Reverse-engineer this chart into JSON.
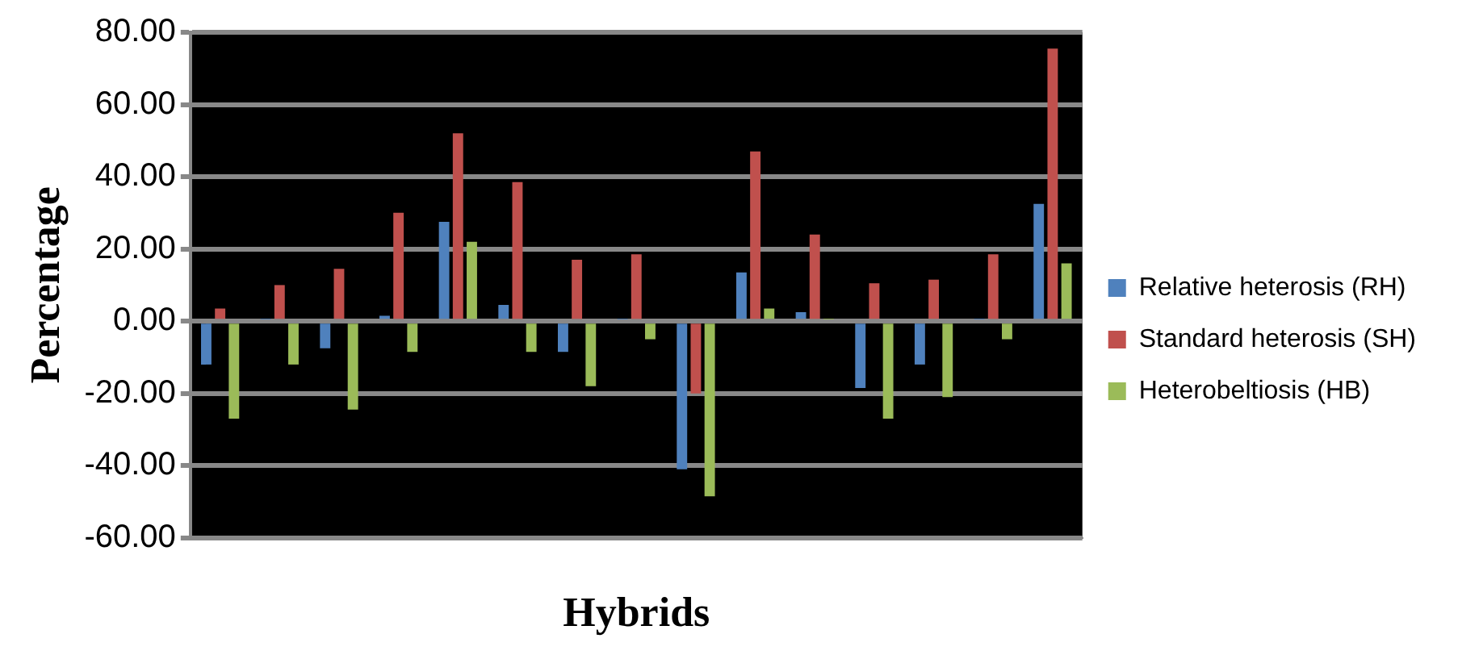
{
  "chart_data": {
    "type": "bar",
    "xlabel": "Hybrids",
    "ylabel": "Percentage",
    "categories": [
      null,
      null,
      null,
      null,
      null,
      null,
      null,
      null,
      null,
      null,
      null,
      null,
      null,
      null,
      null
    ],
    "series": [
      {
        "name": "Relative heterosis (RH)",
        "color": "#4f81bd",
        "values": [
          -12,
          0.5,
          -7.5,
          1.5,
          27.5,
          4.5,
          -8.5,
          0.5,
          -41,
          13.5,
          2.5,
          -18.5,
          -12,
          0.5,
          32.5
        ]
      },
      {
        "name": "Standard heterosis (SH)",
        "color": "#c0504d",
        "values": [
          3.5,
          10,
          14.5,
          30,
          52,
          38.5,
          17,
          18.5,
          -20,
          47,
          24,
          10.5,
          11.5,
          18.5,
          75.5
        ]
      },
      {
        "name": "Heterobeltiosis (HB)",
        "color": "#9bbb59",
        "values": [
          -27,
          -12,
          -24.5,
          -8.5,
          22,
          -8.5,
          -18,
          -5,
          -48.5,
          3.5,
          0.5,
          -27,
          -21,
          -5,
          16
        ]
      }
    ],
    "ylim": [
      -60,
      80
    ],
    "yticks": [
      {
        "value": -60,
        "label": "-60.00"
      },
      {
        "value": -40,
        "label": "-40.00"
      },
      {
        "value": -20,
        "label": "-20.00"
      },
      {
        "value": 0,
        "label": "0.00"
      },
      {
        "value": 20,
        "label": "20.00"
      },
      {
        "value": 40,
        "label": "40.00"
      },
      {
        "value": 60,
        "label": "60.00"
      },
      {
        "value": 80,
        "label": "80.00"
      }
    ],
    "grid": "y",
    "legend": "right"
  }
}
